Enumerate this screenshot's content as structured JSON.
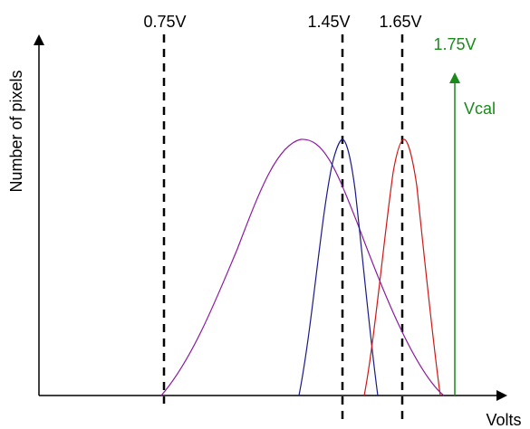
{
  "diagram": {
    "ylabel": "Number of pixels",
    "xlabel": "Volts",
    "thresholds": [
      {
        "label": "0.75V",
        "value": 0.75
      },
      {
        "label": "1.45V",
        "value": 1.45
      },
      {
        "label": "1.65V",
        "value": 1.65
      }
    ],
    "vcal": {
      "label": "1.75V",
      "name": "Vcal",
      "value": 1.75
    },
    "colors": {
      "axis": "#000000",
      "threshold_line": "#000000",
      "vcal": "#1a8a1a",
      "curve_broad": "#8a1aa0",
      "curve_blue": "#1a1a8a",
      "curve_red": "#d01818"
    }
  }
}
